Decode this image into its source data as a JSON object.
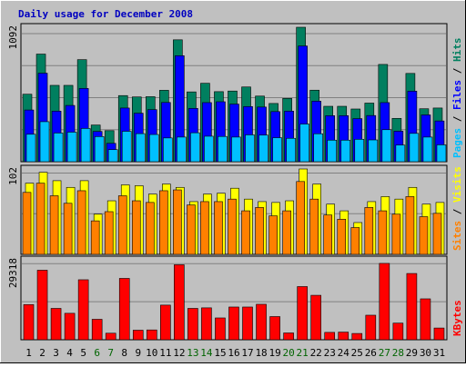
{
  "colors": {
    "background": "#c0c0c0",
    "title": "#0000c0",
    "hits": "#007f5f",
    "files": "#0000ff",
    "pages": "#00c0ff",
    "visits": "#ffff00",
    "sites": "#ff8000",
    "kbytes": "#ff0000",
    "day_weekday": "#000000",
    "day_weekend": "#006400"
  },
  "chart_data": {
    "type": "bar",
    "title": "Daily usage for December 2008",
    "categories": [
      "1",
      "2",
      "3",
      "4",
      "5",
      "6",
      "7",
      "8",
      "9",
      "10",
      "11",
      "12",
      "13",
      "14",
      "15",
      "16",
      "17",
      "18",
      "19",
      "20",
      "21",
      "22",
      "23",
      "24",
      "25",
      "26",
      "27",
      "28",
      "29",
      "30",
      "31"
    ],
    "weekend_days": [
      "6",
      "7",
      "13",
      "14",
      "20",
      "21",
      "27",
      "28"
    ],
    "panels": [
      {
        "name": "hits-files-pages",
        "ymax_label": "1092",
        "ymax": 1092,
        "side_labels": [
          {
            "text": "Pages",
            "color": "#00c0ff"
          },
          {
            "text": " / ",
            "color": "#000000"
          },
          {
            "text": "Files",
            "color": "#0000ff"
          },
          {
            "text": " / ",
            "color": "#000000"
          },
          {
            "text": "Hits",
            "color": "#007f5f"
          }
        ],
        "series": [
          {
            "name": "Hits",
            "color": "#007f5f",
            "values": [
              548,
              874,
              620,
              620,
              829,
              298,
              252,
              537,
              526,
              528,
              580,
              990,
              567,
              637,
              569,
              574,
              607,
              533,
              473,
              514,
              1092,
              581,
              450,
              450,
              428,
              476,
              790,
              352,
              717,
              430,
              436
            ]
          },
          {
            "name": "Files",
            "color": "#0000ff",
            "values": [
              420,
              719,
              411,
              457,
              595,
              246,
              149,
              436,
              394,
              423,
              481,
              861,
              433,
              480,
              487,
              468,
              448,
              444,
              407,
              411,
              940,
              492,
              374,
              374,
              350,
              375,
              480,
              248,
              573,
              380,
              331
            ]
          },
          {
            "name": "Pages",
            "color": "#00c0ff",
            "values": [
              223,
              325,
              233,
              240,
              270,
              204,
              98,
              247,
              228,
              221,
              193,
              200,
              235,
              207,
              205,
              200,
              218,
              216,
              195,
              190,
              306,
              227,
              175,
              175,
              182,
              177,
              260,
              135,
              230,
              200,
              137
            ]
          }
        ]
      },
      {
        "name": "visits-sites",
        "ymax_label": "102",
        "ymax": 102,
        "side_labels": [
          {
            "text": "Sites",
            "color": "#ff8000"
          },
          {
            "text": " / ",
            "color": "#000000"
          },
          {
            "text": "Visits",
            "color": "#ffff00"
          }
        ],
        "series": [
          {
            "name": "Visits",
            "color": "#ffff00",
            "values": [
              85,
              98,
              88,
              80,
              88,
              48,
              64,
              83,
              82,
              72,
              84,
              80,
              63,
              72,
              73,
              79,
              66,
              63,
              62,
              64,
              102,
              84,
              60,
              52,
              38,
              63,
              69,
              66,
              80,
              60,
              62
            ]
          },
          {
            "name": "Sites",
            "color": "#ff8000",
            "values": [
              74,
              85,
              70,
              61,
              76,
              40,
              51,
              70,
              64,
              62,
              76,
              77,
              59,
              63,
              63,
              66,
              52,
              56,
              46,
              52,
              87,
              66,
              47,
              42,
              32,
              56,
              52,
              48,
              69,
              45,
              49
            ]
          }
        ]
      },
      {
        "name": "kbytes",
        "ymax_label": "29318",
        "ymax": 29318,
        "side_labels": [
          {
            "text": "KBytes",
            "color": "#ff0000"
          }
        ],
        "series": [
          {
            "name": "KBytes",
            "color": "#ff0000",
            "values": [
              12900,
              25500,
              11500,
              9700,
              22000,
              7500,
              2400,
              22500,
              3500,
              3600,
              12700,
              27500,
              11500,
              11700,
              8000,
              12000,
              12000,
              13000,
              8500,
              2500,
              19500,
              16300,
              2700,
              2800,
              2300,
              9000,
              28000,
              6100,
              24300,
              15000,
              4300
            ]
          }
        ]
      }
    ]
  }
}
